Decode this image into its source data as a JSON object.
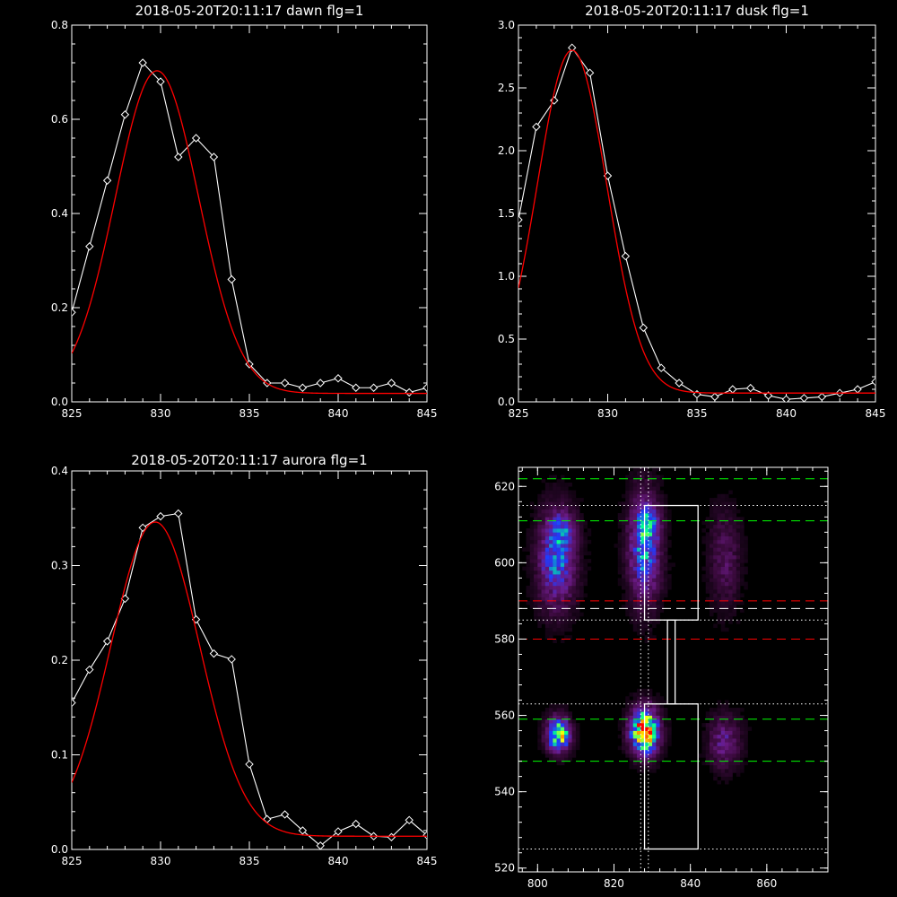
{
  "chart_data": [
    {
      "type": "line",
      "title": "2018-05-20T20:11:17 dawn flg=1",
      "xlim": [
        825,
        845
      ],
      "ylim": [
        0,
        0.8
      ],
      "xticks": [
        825,
        830,
        835,
        840,
        845
      ],
      "yticks": [
        0.0,
        0.2,
        0.4,
        0.6,
        0.8
      ],
      "yticklabels": [
        "0.0",
        "0.2",
        "0.4",
        "0.6",
        "0.8"
      ],
      "series": [
        {
          "color": "#ffffff",
          "marker": "diamond",
          "x": [
            825,
            826,
            827,
            828,
            829,
            830,
            831,
            832,
            833,
            834,
            835,
            836,
            837,
            838,
            839,
            840,
            841,
            842,
            843,
            844,
            845
          ],
          "y": [
            0.19,
            0.33,
            0.47,
            0.61,
            0.72,
            0.68,
            0.52,
            0.56,
            0.52,
            0.26,
            0.08,
            0.04,
            0.04,
            0.03,
            0.04,
            0.05,
            0.03,
            0.03,
            0.04,
            0.02,
            0.03
          ]
        },
        {
          "color": "#ff0000",
          "fit": "gaussian",
          "amplitude": 0.685,
          "center": 829.8,
          "sigma": 2.35,
          "offset": 0.018
        }
      ]
    },
    {
      "type": "line",
      "title": "2018-05-20T20:11:17 dusk flg=1",
      "xlim": [
        825,
        845
      ],
      "ylim": [
        0,
        3.0
      ],
      "xticks": [
        825,
        830,
        835,
        840,
        845
      ],
      "yticks": [
        0.0,
        0.5,
        1.0,
        1.5,
        2.0,
        2.5,
        3.0
      ],
      "yticklabels": [
        "0.0",
        "0.5",
        "1.0",
        "1.5",
        "2.0",
        "2.5",
        "3.0"
      ],
      "series": [
        {
          "color": "#ffffff",
          "marker": "diamond",
          "x": [
            825,
            826,
            827,
            828,
            829,
            830,
            831,
            832,
            833,
            834,
            835,
            836,
            837,
            838,
            839,
            840,
            841,
            842,
            843,
            844,
            845
          ],
          "y": [
            1.45,
            2.19,
            2.4,
            2.82,
            2.62,
            1.8,
            1.16,
            0.59,
            0.27,
            0.15,
            0.06,
            0.04,
            0.1,
            0.11,
            0.05,
            0.02,
            0.03,
            0.04,
            0.07,
            0.1,
            0.16
          ]
        },
        {
          "color": "#ff0000",
          "fit": "gaussian",
          "amplitude": 2.73,
          "center": 828.0,
          "sigma": 1.95,
          "offset": 0.07
        }
      ]
    },
    {
      "type": "line",
      "title": "2018-05-20T20:11:17 aurora flg=1",
      "xlim": [
        825,
        845
      ],
      "ylim": [
        0,
        0.4
      ],
      "xticks": [
        825,
        830,
        835,
        840,
        845
      ],
      "yticks": [
        0.0,
        0.1,
        0.2,
        0.3,
        0.4
      ],
      "yticklabels": [
        "0.0",
        "0.1",
        "0.2",
        "0.3",
        "0.4"
      ],
      "series": [
        {
          "color": "#ffffff",
          "marker": "diamond",
          "x": [
            825,
            826,
            827,
            828,
            829,
            830,
            831,
            832,
            833,
            834,
            835,
            836,
            837,
            838,
            839,
            840,
            841,
            842,
            843,
            844,
            845
          ],
          "y": [
            0.155,
            0.19,
            0.22,
            0.265,
            0.34,
            0.352,
            0.355,
            0.243,
            0.207,
            0.201,
            0.09,
            0.032,
            0.037,
            0.02,
            0.004,
            0.019,
            0.027,
            0.014,
            0.013,
            0.031,
            0.015
          ],
          "x_start": 825
        },
        {
          "color": "#ff0000",
          "fit": "gaussian",
          "amplitude": 0.332,
          "center": 829.7,
          "sigma": 2.5,
          "offset": 0.014
        }
      ]
    },
    {
      "type": "heatmap",
      "title": "",
      "xlim": [
        795,
        876
      ],
      "ylim": [
        519,
        625
      ],
      "xticks": [
        800,
        820,
        840,
        860
      ],
      "yticks": [
        520,
        540,
        560,
        580,
        600,
        620
      ],
      "colormap": [
        "#000000",
        "#3a0a3c",
        "#6b1a86",
        "#1e3cff",
        "#00ff90",
        "#ffff00",
        "#ff0000"
      ],
      "blobs": [
        {
          "x": 805,
          "y": 601,
          "sx": 3.5,
          "sy": 9,
          "peak": 0.5
        },
        {
          "x": 807,
          "y": 609,
          "sx": 2.5,
          "sy": 3,
          "peak": 0.2
        },
        {
          "x": 828,
          "y": 604,
          "sx": 3,
          "sy": 10,
          "peak": 0.52
        },
        {
          "x": 829,
          "y": 610,
          "sx": 2,
          "sy": 3,
          "peak": 0.25
        },
        {
          "x": 849,
          "y": 601,
          "sx": 3,
          "sy": 9,
          "peak": 0.22
        },
        {
          "x": 805.5,
          "y": 555,
          "sx": 2.2,
          "sy": 3.2,
          "peak": 0.78
        },
        {
          "x": 828,
          "y": 556,
          "sx": 2.6,
          "sy": 4.2,
          "peak": 1.0
        },
        {
          "x": 849,
          "y": 553,
          "sx": 3,
          "sy": 5,
          "peak": 0.3
        }
      ],
      "hlines": [
        {
          "y": 622,
          "color": "#00ff00",
          "style": "dashed"
        },
        {
          "y": 611,
          "color": "#00ff00",
          "style": "dashed"
        },
        {
          "y": 615,
          "color": "#ffffff",
          "style": "dotted"
        },
        {
          "y": 590,
          "color": "#ff0000",
          "style": "dashed"
        },
        {
          "y": 588,
          "color": "#ffffff",
          "style": "dashed"
        },
        {
          "y": 585,
          "color": "#ffffff",
          "style": "dotted"
        },
        {
          "y": 580,
          "color": "#ff0000",
          "style": "dashed"
        },
        {
          "y": 563,
          "color": "#ffffff",
          "style": "dotted"
        },
        {
          "y": 559,
          "color": "#00ff00",
          "style": "dashed"
        },
        {
          "y": 548,
          "color": "#00ff00",
          "style": "dashed"
        },
        {
          "y": 525,
          "color": "#ffffff",
          "style": "dotted"
        }
      ],
      "vlines": [
        {
          "x": 827,
          "color": "#ffffff",
          "style": "dotted"
        },
        {
          "x": 829,
          "color": "#ffffff",
          "style": "dotted"
        }
      ],
      "rects": [
        {
          "x0": 828,
          "x1": 842,
          "y0": 585,
          "y1": 615
        },
        {
          "x0": 834,
          "x1": 836,
          "y0": 563,
          "y1": 585
        },
        {
          "x0": 828,
          "x1": 842,
          "y0": 525,
          "y1": 563
        }
      ]
    }
  ]
}
